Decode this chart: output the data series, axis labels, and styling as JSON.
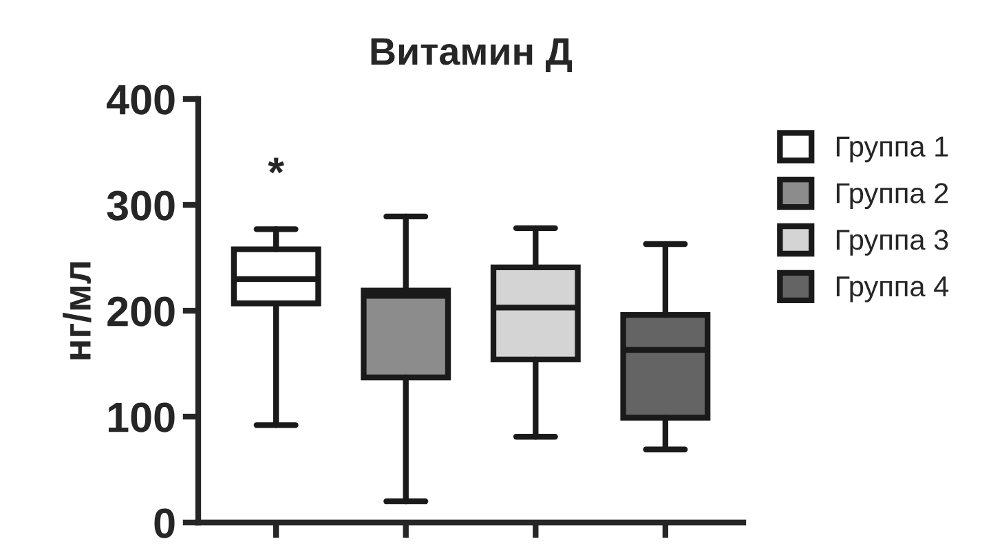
{
  "chart_data": {
    "type": "box",
    "title": "Витамин Д",
    "ylabel": "нг/мл",
    "categories": [
      null,
      null,
      null,
      null
    ],
    "series": [
      {
        "name": "Группа 1",
        "color": "#ffffff",
        "boxes": [
          {
            "low": 92,
            "q1": 207,
            "median": 230,
            "q3": 258,
            "high": 277
          },
          null,
          null,
          null
        ]
      },
      {
        "name": "Группа 2",
        "color": "#8c8c8c",
        "boxes": [
          null,
          {
            "low": 20,
            "q1": 137,
            "median": 214,
            "q3": 219,
            "high": 289
          },
          null,
          null
        ]
      },
      {
        "name": "Группа 3",
        "color": "#d4d4d4",
        "boxes": [
          null,
          null,
          {
            "low": 81,
            "q1": 154,
            "median": 203,
            "q3": 241,
            "high": 278
          },
          null
        ]
      },
      {
        "name": "Группа 4",
        "color": "#646464",
        "boxes": [
          null,
          null,
          null,
          {
            "low": 69,
            "q1": 99,
            "median": 163,
            "q3": 196,
            "high": 263
          }
        ]
      }
    ],
    "annotations": [
      "*"
    ],
    "ylim": [
      0,
      400
    ],
    "yticks": [
      0,
      100,
      200,
      300,
      400
    ],
    "grid": false,
    "legend": "right"
  }
}
